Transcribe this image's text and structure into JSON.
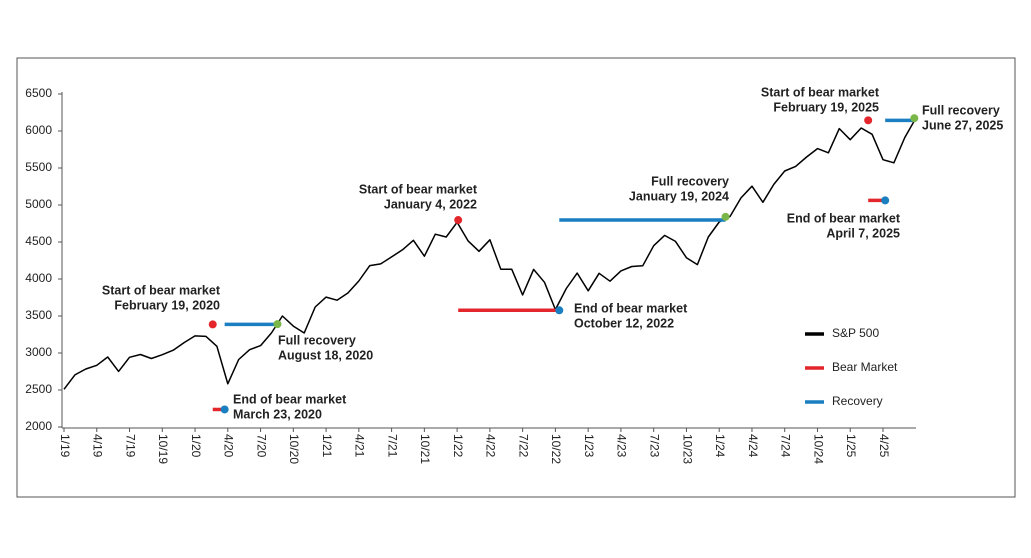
{
  "chart_data": {
    "type": "line",
    "categories": [
      "1/19",
      null,
      null,
      "4/19",
      null,
      null,
      "7/19",
      null,
      null,
      "10/19",
      null,
      null,
      "1/20",
      null,
      null,
      "4/20",
      null,
      null,
      "7/20",
      null,
      null,
      "10/20",
      null,
      null,
      "1/21",
      null,
      null,
      "4/21",
      null,
      null,
      "7/21",
      null,
      null,
      "10/21",
      null,
      null,
      "1/22",
      null,
      null,
      "4/22",
      null,
      null,
      "7/22",
      null,
      null,
      "10/22",
      null,
      null,
      "1/23",
      null,
      null,
      "4/23",
      null,
      null,
      "7/23",
      null,
      null,
      "10/23",
      null,
      null,
      "1/24",
      null,
      null,
      "4/24",
      null,
      null,
      "7/24",
      null,
      null,
      "10/24",
      null,
      null,
      "1/25",
      null,
      null,
      "4/25",
      null,
      null,
      null
    ],
    "series": [
      {
        "name": "S&P 500",
        "color": "#000000",
        "values": [
          2510,
          2704,
          2784,
          2834,
          2946,
          2752,
          2942,
          2980,
          2926,
          2977,
          3038,
          3141,
          3231,
          3225,
          3090,
          2584,
          2912,
          3044,
          3100,
          3271,
          3500,
          3363,
          3270,
          3622,
          3756,
          3714,
          3811,
          3973,
          4181,
          4204,
          4298,
          4395,
          4523,
          4308,
          4605,
          4567,
          4766,
          4516,
          4374,
          4530,
          4132,
          4132,
          3785,
          4130,
          3955,
          3586,
          3872,
          4080,
          3840,
          4077,
          3970,
          4109,
          4169,
          4180,
          4450,
          4589,
          4508,
          4288,
          4194,
          4568,
          4770,
          4846,
          5096,
          5254,
          5036,
          5278,
          5460,
          5522,
          5648,
          5762,
          5705,
          6032,
          5882,
          6040,
          5955,
          5612,
          5570,
          5912,
          6173
        ]
      }
    ],
    "ylim": [
      2000,
      6500
    ],
    "yticks": [
      2000,
      2500,
      3000,
      3500,
      4000,
      4500,
      5000,
      5500,
      6000,
      6500
    ],
    "bear_market": {
      "name": "Bear Market",
      "color": "#e3262c"
    },
    "recovery": {
      "name": "Recovery",
      "color": "#1a7fc0"
    },
    "episodes": [
      {
        "start": {
          "label": "Start of bear market",
          "date": "February 19, 2020",
          "value": 3386,
          "color": "#e3262c"
        },
        "end": {
          "label": "End of bear market",
          "date": "March 23, 2020",
          "value": 2237,
          "color": "#1a7fc0"
        },
        "recovery": {
          "label": "Full recovery",
          "date": "August 18, 2020",
          "value": 3390,
          "color": "#7ab648"
        }
      },
      {
        "start": {
          "label": "Start of bear market",
          "date": "January 4, 2022",
          "value": 4797,
          "color": "#e3262c"
        },
        "end": {
          "label": "End of bear market",
          "date": "October 12, 2022",
          "value": 3577,
          "color": "#1a7fc0"
        },
        "recovery": {
          "label": "Full recovery",
          "date": "January 19, 2024",
          "value": 4840,
          "color": "#7ab648"
        }
      },
      {
        "start": {
          "label": "Start of bear market",
          "date": "February 19, 2025",
          "value": 6144,
          "color": "#e3262c"
        },
        "end": {
          "label": "End of bear market",
          "date": "April 7, 2025",
          "value": 5062,
          "color": "#1a7fc0"
        },
        "recovery": {
          "label": "Full recovery",
          "date": "June 27, 2025",
          "value": 6173,
          "color": "#7ab648"
        }
      }
    ]
  }
}
